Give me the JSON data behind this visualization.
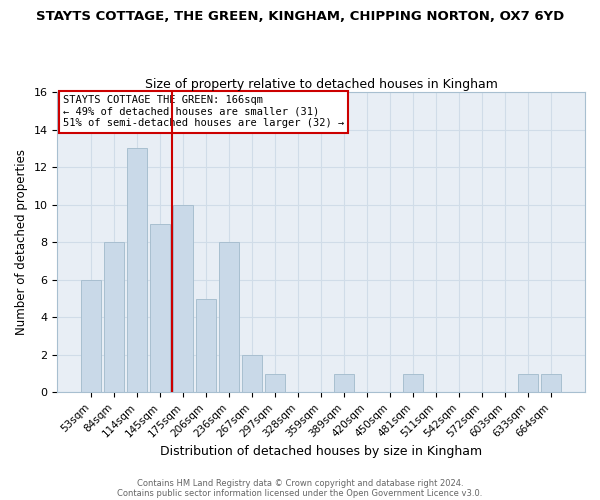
{
  "title": "STAYTS COTTAGE, THE GREEN, KINGHAM, CHIPPING NORTON, OX7 6YD",
  "subtitle": "Size of property relative to detached houses in Kingham",
  "xlabel": "Distribution of detached houses by size in Kingham",
  "ylabel": "Number of detached properties",
  "bar_labels": [
    "53sqm",
    "84sqm",
    "114sqm",
    "145sqm",
    "175sqm",
    "206sqm",
    "236sqm",
    "267sqm",
    "297sqm",
    "328sqm",
    "359sqm",
    "389sqm",
    "420sqm",
    "450sqm",
    "481sqm",
    "511sqm",
    "542sqm",
    "572sqm",
    "603sqm",
    "633sqm",
    "664sqm"
  ],
  "bar_heights": [
    6,
    8,
    13,
    9,
    10,
    5,
    8,
    2,
    1,
    0,
    0,
    1,
    0,
    0,
    1,
    0,
    0,
    0,
    0,
    1,
    1
  ],
  "bar_color": "#c9d9e8",
  "bar_edge_color": "#a8bfd0",
  "vline_color": "#cc0000",
  "annotation_text": "STAYTS COTTAGE THE GREEN: 166sqm\n← 49% of detached houses are smaller (31)\n51% of semi-detached houses are larger (32) →",
  "annotation_box_edge": "#cc0000",
  "ylim": [
    0,
    16
  ],
  "yticks": [
    0,
    2,
    4,
    6,
    8,
    10,
    12,
    14,
    16
  ],
  "grid_color": "#d0dce8",
  "plot_bg_color": "#e8eef5",
  "fig_bg_color": "#ffffff",
  "footer_line1": "Contains HM Land Registry data © Crown copyright and database right 2024.",
  "footer_line2": "Contains public sector information licensed under the Open Government Licence v3.0.",
  "title_fontsize": 9.5,
  "subtitle_fontsize": 9,
  "vline_bar_index": 4
}
